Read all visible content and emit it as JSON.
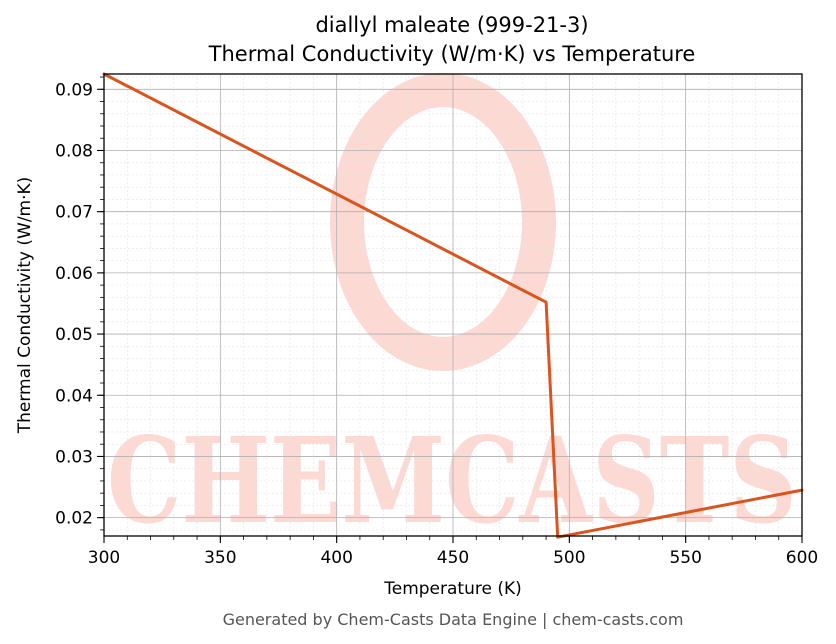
{
  "chart_data": {
    "type": "line",
    "title_line1": "diallyl maleate (999-21-3)",
    "title_line2": "Thermal Conductivity (W/m·K) vs Temperature",
    "xlabel": "Temperature (K)",
    "ylabel": "Thermal Conductivity (W/m·K)",
    "xlim": [
      300,
      600
    ],
    "ylim": [
      0.017,
      0.0925
    ],
    "xticks": [
      300,
      350,
      400,
      450,
      500,
      550,
      600
    ],
    "yticks": [
      0.02,
      0.03,
      0.04,
      0.05,
      0.06,
      0.07,
      0.08,
      0.09
    ],
    "grid": true,
    "series": [
      {
        "color": "#d9541e",
        "x": [
          300,
          490,
          495,
          600
        ],
        "y": [
          0.0925,
          0.0552,
          0.0168,
          0.0245
        ]
      }
    ]
  },
  "watermark": {
    "text": "CHEMCASTS",
    "color": "#fcd9d2"
  },
  "footer": "Generated by Chem-Casts Data Engine | chem-casts.com"
}
